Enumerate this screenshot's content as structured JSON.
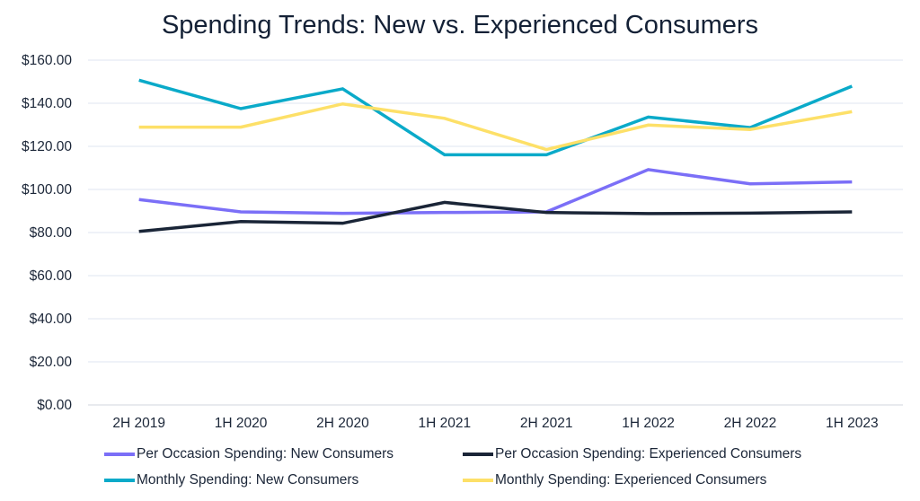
{
  "chart_data": {
    "type": "line",
    "title": "Spending Trends: New vs. Experienced Consumers",
    "xlabel": "",
    "ylabel": "",
    "categories": [
      "2H 2019",
      "1H 2020",
      "2H 2020",
      "1H 2021",
      "2H 2021",
      "1H 2022",
      "2H 2022",
      "1H 2023"
    ],
    "ylim": [
      0,
      160
    ],
    "yticks": [
      "$0.00",
      "$20.00",
      "$40.00",
      "$60.00",
      "$80.00",
      "$100.00",
      "$120.00",
      "$140.00",
      "$160.00"
    ],
    "grid": true,
    "legend_position": "bottom",
    "series": [
      {
        "name": "Per Occasion Spending: New Consumers",
        "color": "#7b6ff7",
        "values": [
          95.3,
          89.6,
          88.9,
          89.3,
          89.6,
          109.2,
          102.6,
          103.5
        ]
      },
      {
        "name": "Per Occasion Spending: Experienced Consumers",
        "color": "#1a2537",
        "values": [
          80.5,
          85.1,
          84.3,
          94.0,
          89.3,
          88.8,
          89.0,
          89.6
        ]
      },
      {
        "name": "Monthly Spending: New Consumers",
        "color": "#0aaac9",
        "values": [
          150.7,
          137.5,
          146.7,
          116.1,
          116.1,
          133.6,
          128.7,
          147.9
        ]
      },
      {
        "name": "Monthly Spending: Experienced Consumers",
        "color": "#fde068",
        "values": [
          128.9,
          128.9,
          139.7,
          133.0,
          118.5,
          129.9,
          127.8,
          136.1
        ]
      }
    ]
  }
}
